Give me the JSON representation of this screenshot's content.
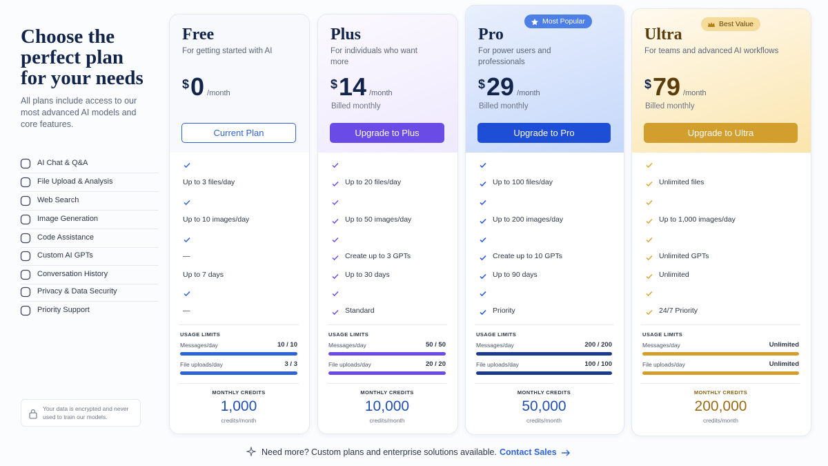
{
  "header": {
    "title": "Choose the perfect plan for your needs",
    "subtitle": "All plans include access to our most advanced AI models and core features."
  },
  "features": [
    "AI Chat & Q&A",
    "File Upload & Analysis",
    "Web Search",
    "Image Generation",
    "Code Assistance",
    "Custom AI GPTs",
    "Conversation History",
    "Privacy & Data Security",
    "Priority Support"
  ],
  "security_note": "Your data is encrypted and never used to train our models.",
  "plans": [
    {
      "name": "Free",
      "description": "For getting started with AI",
      "currency": "$",
      "price": "0",
      "period": "/month",
      "button": "Current Plan",
      "color": "#2f62d6",
      "rows": [
        true,
        "Up to  3  files/day",
        true,
        "Up to 10  images/day",
        true,
        "—",
        "Up to 7 days",
        true,
        "—"
      ],
      "usage_title": "USAGE LIMITS",
      "usage": [
        {
          "label": "Messages/day",
          "value": "10 / 10"
        },
        {
          "label": "File uploads/day",
          "value": "3 / 3"
        }
      ],
      "credits_title": "MONTHLY CREDITS",
      "credits": "1,000",
      "credits_unit": "credits/month"
    },
    {
      "name": "Plus",
      "description": "For individuals who want more",
      "currency": "$",
      "price": "14",
      "period": "/month",
      "billing": "Billed monthly",
      "button": "Upgrade to Plus",
      "color": "#6a4be6",
      "rows": [
        true,
        "Up to 20 files/day",
        true,
        "Up to 50 images/day",
        true,
        "Create up to 3 GPTs",
        "Up to 30 days",
        true,
        "Standard"
      ],
      "usage_title": "USAGE LIMITS",
      "usage": [
        {
          "label": "Messages/day",
          "value": "50 / 50"
        },
        {
          "label": "File uploads/day",
          "value": "20 / 20"
        }
      ],
      "credits_title": "MONTHLY CREDITS",
      "credits": "10,000",
      "credits_unit": "credits/month"
    },
    {
      "name": "Pro",
      "badge": "Most Popular",
      "description": "For power users and professionals",
      "currency": "$",
      "price": "29",
      "period": "/month",
      "billing": "Billed monthly",
      "button": "Upgrade to Pro",
      "color": "#1f4ed6",
      "rows": [
        true,
        "Up to 100 files/day",
        true,
        "Up to 200 images/day",
        true,
        "Create up to 10 GPTs",
        "Up to 90 days",
        true,
        "Priority"
      ],
      "usage_title": "USAGE LIMITS",
      "usage": [
        {
          "label": "Messages/day",
          "value": "200 / 200"
        },
        {
          "label": "File uploads/day",
          "value": "100 / 100"
        }
      ],
      "credits_title": "MONTHLY CREDITS",
      "credits": "50,000",
      "credits_unit": "credits/month"
    },
    {
      "name": "Ultra",
      "badge": "Best Value",
      "description": "For teams and advanced AI workflows",
      "currency": "$",
      "price": "79",
      "period": "/month",
      "billing": "Billed monthly",
      "button": "Upgrade to Ultra",
      "color": "#d29e2e",
      "rows": [
        true,
        "Unlimited files",
        true,
        "Up to 1,000 images/day",
        true,
        "Unlimited GPTs",
        "Unlimited",
        true,
        "24/7 Priority"
      ],
      "usage_title": "USAGE LIMITS",
      "usage": [
        {
          "label": "Messages/day",
          "value": "Unlimited"
        },
        {
          "label": "File uploads/day",
          "value": "Unlimited"
        }
      ],
      "credits_title": "MONTHLY CREDITS",
      "credits": "200,000",
      "credits_unit": "credits/month"
    }
  ],
  "footer": {
    "lead": "Need more?",
    "text": "Custom plans and enterprise solutions available.",
    "link": "Contact Sales"
  }
}
